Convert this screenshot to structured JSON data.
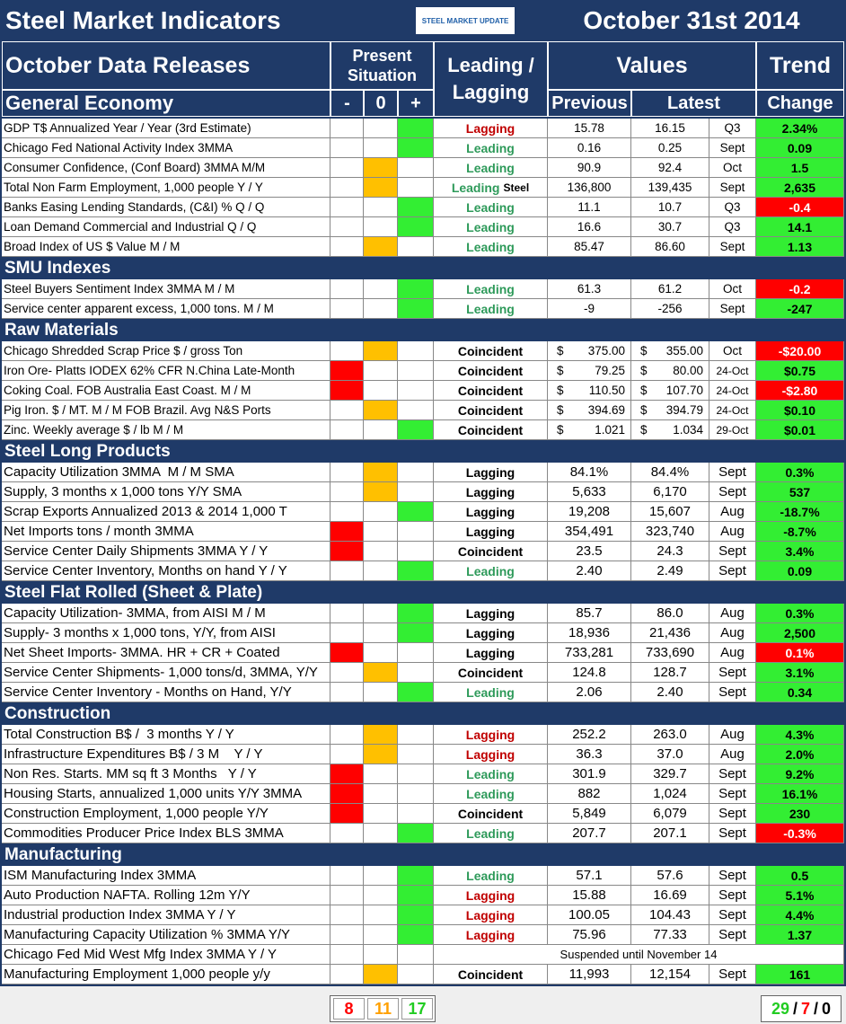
{
  "header": {
    "title": "Steel Market Indicators",
    "logo": "STEEL MARKET UPDATE",
    "date": "October 31st 2014"
  },
  "columns": {
    "releases": "October Data Releases",
    "situation": "Present Situation",
    "minus": "-",
    "zero": "0",
    "plus": "+",
    "lead": "Leading / Lagging",
    "values": "Values",
    "previous": "Previous",
    "latest": "Latest",
    "trend": "Trend",
    "change": "Change"
  },
  "sections": [
    {
      "title": "General Economy",
      "rows": [
        {
          "label": "GDP T$ Annualized Year / Year (3rd Estimate)",
          "sit": 1,
          "lead": "Lagging",
          "lead_color": "red",
          "prev": "15.78",
          "latest": "16.15",
          "period": "Q3",
          "change": "2.34%",
          "change_color": "green"
        },
        {
          "label": "Chicago Fed National Activity Index 3MMA",
          "sit": 1,
          "lead": "Leading",
          "lead_color": "green",
          "prev": "0.16",
          "latest": "0.25",
          "period": "Sept",
          "change": "0.09",
          "change_color": "green"
        },
        {
          "label": "Consumer Confidence, (Conf Board) 3MMA M/M",
          "sit": 0,
          "lead": "Leading",
          "lead_color": "green",
          "prev": "90.9",
          "latest": "92.4",
          "period": "Oct",
          "change": "1.5",
          "change_color": "green"
        },
        {
          "label": "Total Non Farm Employment, 1,000 people Y / Y",
          "sit": 0,
          "lead": "Leading",
          "lead_note": "Steel",
          "lead_color": "green",
          "prev": "136,800",
          "latest": "139,435",
          "period": "Sept",
          "change": "2,635",
          "change_color": "green"
        },
        {
          "label": "Banks Easing Lending Standards, (C&I) % Q / Q",
          "sit": 1,
          "lead": "Leading",
          "lead_color": "green",
          "prev": "11.1",
          "latest": "10.7",
          "period": "Q3",
          "change": "-0.4",
          "change_color": "red"
        },
        {
          "label": "Loan Demand Commercial and Industrial Q / Q",
          "sit": 1,
          "lead": "Leading",
          "lead_color": "green",
          "prev": "16.6",
          "latest": "30.7",
          "period": "Q3",
          "change": "14.1",
          "change_color": "green"
        },
        {
          "label": "Broad Index of US $ Value M / M",
          "sit": 0,
          "lead": "Leading",
          "lead_color": "green",
          "prev": "85.47",
          "latest": "86.60",
          "period": "Sept",
          "change": "1.13",
          "change_color": "green"
        }
      ]
    },
    {
      "title": "SMU Indexes",
      "rows": [
        {
          "label": "Steel Buyers Sentiment Index 3MMA M / M",
          "sit": 1,
          "lead": "Leading",
          "lead_color": "green",
          "prev": "61.3",
          "latest": "61.2",
          "period": "Oct",
          "change": "-0.2",
          "change_color": "red"
        },
        {
          "label": "Service center apparent excess, 1,000 tons. M / M",
          "sit": 1,
          "lead": "Leading",
          "lead_color": "green",
          "prev": "-9",
          "latest": "-256",
          "period": "Sept",
          "change": "-247",
          "change_color": "green"
        }
      ]
    },
    {
      "title": "Raw Materials",
      "rows": [
        {
          "label": "Chicago Shredded Scrap Price $ / gross Ton",
          "sit": 0,
          "lead": "Coincident",
          "lead_color": "black",
          "unit": "$",
          "prev": "375.00",
          "latest": "355.00",
          "period": "Oct",
          "change": "-$20.00",
          "change_color": "red"
        },
        {
          "label": "Iron Ore- Platts IODEX 62% CFR N.China Late-Month",
          "sit": -1,
          "lead": "Coincident",
          "lead_color": "black",
          "unit": "$",
          "prev": "79.25",
          "latest": "80.00",
          "period": "24-Oct",
          "change": "$0.75",
          "change_color": "green"
        },
        {
          "label": "Coking Coal. FOB Australia East Coast. M / M",
          "sit": -1,
          "lead": "Coincident",
          "lead_color": "black",
          "unit": "$",
          "prev": "110.50",
          "latest": "107.70",
          "period": "24-Oct",
          "change": "-$2.80",
          "change_color": "red"
        },
        {
          "label": "Pig Iron. $ / MT. M / M FOB Brazil. Avg N&S Ports",
          "sit": 0,
          "lead": "Coincident",
          "lead_color": "black",
          "unit": "$",
          "prev": "394.69",
          "latest": "394.79",
          "period": "24-Oct",
          "change": "$0.10",
          "change_color": "green"
        },
        {
          "label": "Zinc. Weekly average $ / lb M / M",
          "sit": 1,
          "lead": "Coincident",
          "lead_color": "black",
          "unit": "$",
          "prev": "1.021",
          "latest": "1.034",
          "period": "29-Oct",
          "change": "$0.01",
          "change_color": "green"
        }
      ]
    },
    {
      "title": "Steel Long Products",
      "rows": [
        {
          "label": "Capacity Utilization 3MMA  M / M SMA",
          "sit": 0,
          "lead": "Lagging",
          "lead_color": "black",
          "prev": "84.1%",
          "latest": "84.4%",
          "period": "Sept",
          "change": "0.3%",
          "change_color": "green"
        },
        {
          "label": "Supply, 3 months x 1,000 tons Y/Y SMA",
          "sit": 0,
          "lead": "Lagging",
          "lead_color": "black",
          "prev": "5,633",
          "latest": "6,170",
          "period": "Sept",
          "change": "537",
          "change_color": "green"
        },
        {
          "label": "Scrap Exports Annualized 2013 & 2014 1,000 T",
          "sit": 1,
          "lead": "Lagging",
          "lead_color": "black",
          "prev": "19,208",
          "latest": "15,607",
          "period": "Aug",
          "change": "-18.7%",
          "change_color": "green"
        },
        {
          "label": "Net Imports tons / month 3MMA",
          "sit": -1,
          "lead": "Lagging",
          "lead_color": "black",
          "prev": "354,491",
          "latest": "323,740",
          "period": "Aug",
          "change": "-8.7%",
          "change_color": "green"
        },
        {
          "label": "Service Center Daily Shipments 3MMA Y / Y",
          "sit": -1,
          "lead": "Coincident",
          "lead_color": "black",
          "prev": "23.5",
          "latest": "24.3",
          "period": "Sept",
          "change": "3.4%",
          "change_color": "green"
        },
        {
          "label": "Service Center Inventory, Months on hand Y / Y",
          "sit": 1,
          "lead": "Leading",
          "lead_color": "green",
          "prev": "2.40",
          "latest": "2.49",
          "period": "Sept",
          "change": "0.09",
          "change_color": "green"
        }
      ]
    },
    {
      "title": "Steel Flat Rolled (Sheet & Plate)",
      "rows": [
        {
          "label": "Capacity Utilization- 3MMA, from AISI M / M",
          "sit": 1,
          "lead": "Lagging",
          "lead_color": "black",
          "prev": "85.7",
          "latest": "86.0",
          "period": "Aug",
          "change": "0.3%",
          "change_color": "green"
        },
        {
          "label": "Supply- 3 months x 1,000 tons, Y/Y, from AISI",
          "sit": 1,
          "lead": "Lagging",
          "lead_color": "black",
          "prev": "18,936",
          "latest": "21,436",
          "period": "Aug",
          "change": "2,500",
          "change_color": "green"
        },
        {
          "label": "Net Sheet Imports- 3MMA. HR + CR + Coated",
          "sit": -1,
          "lead": "Lagging",
          "lead_color": "black",
          "prev": "733,281",
          "latest": "733,690",
          "period": "Aug",
          "change": "0.1%",
          "change_color": "red"
        },
        {
          "label": "Service Center Shipments- 1,000 tons/d, 3MMA, Y/Y",
          "sit": 0,
          "lead": "Coincident",
          "lead_color": "black",
          "prev": "124.8",
          "latest": "128.7",
          "period": "Sept",
          "change": "3.1%",
          "change_color": "green"
        },
        {
          "label": "Service Center Inventory - Months on Hand, Y/Y",
          "sit": 1,
          "lead": "Leading",
          "lead_color": "green",
          "prev": "2.06",
          "latest": "2.40",
          "period": "Sept",
          "change": "0.34",
          "change_color": "green"
        }
      ]
    },
    {
      "title": "Construction",
      "rows": [
        {
          "label": "Total Construction B$ /  3 months Y / Y",
          "sit": 0,
          "lead": "Lagging",
          "lead_color": "red",
          "prev": "252.2",
          "latest": "263.0",
          "period": "Aug",
          "change": "4.3%",
          "change_color": "green"
        },
        {
          "label": "Infrastructure Expenditures B$ / 3 M    Y / Y",
          "sit": 0,
          "lead": "Lagging",
          "lead_color": "red",
          "prev": "36.3",
          "latest": "37.0",
          "period": "Aug",
          "change": "2.0%",
          "change_color": "green"
        },
        {
          "label": "Non Res. Starts. MM sq ft 3 Months   Y / Y",
          "sit": -1,
          "lead": "Leading",
          "lead_color": "green",
          "prev": "301.9",
          "latest": "329.7",
          "period": "Sept",
          "change": "9.2%",
          "change_color": "green"
        },
        {
          "label": "Housing Starts, annualized 1,000 units Y/Y 3MMA",
          "sit": -1,
          "lead": "Leading",
          "lead_color": "green",
          "prev": "882",
          "latest": "1,024",
          "period": "Sept",
          "change": "16.1%",
          "change_color": "green"
        },
        {
          "label": "Construction Employment, 1,000 people Y/Y",
          "sit": -1,
          "lead": "Coincident",
          "lead_color": "black",
          "prev": "5,849",
          "latest": "6,079",
          "period": "Sept",
          "change": "230",
          "change_color": "green"
        },
        {
          "label": "Commodities Producer Price Index BLS 3MMA",
          "sit": 1,
          "lead": "Leading",
          "lead_color": "green",
          "prev": "207.7",
          "latest": "207.1",
          "period": "Sept",
          "change": "-0.3%",
          "change_color": "red"
        }
      ]
    },
    {
      "title": "Manufacturing",
      "rows": [
        {
          "label": "ISM Manufacturing Index 3MMA",
          "sit": 1,
          "lead": "Leading",
          "lead_color": "green",
          "prev": "57.1",
          "latest": "57.6",
          "period": "Sept",
          "change": "0.5",
          "change_color": "green"
        },
        {
          "label": "Auto Production NAFTA. Rolling 12m Y/Y",
          "sit": 1,
          "lead": "Lagging",
          "lead_color": "red",
          "prev": "15.88",
          "latest": "16.69",
          "period": "Sept",
          "change": "5.1%",
          "change_color": "green"
        },
        {
          "label": "Industrial production Index 3MMA Y / Y",
          "sit": 1,
          "lead": "Lagging",
          "lead_color": "red",
          "prev": "100.05",
          "latest": "104.43",
          "period": "Sept",
          "change": "4.4%",
          "change_color": "green"
        },
        {
          "label": "Manufacturing Capacity Utilization % 3MMA Y/Y",
          "sit": 1,
          "lead": "Lagging",
          "lead_color": "red",
          "prev": "75.96",
          "latest": "77.33",
          "period": "Sept",
          "change": "1.37",
          "change_color": "green"
        },
        {
          "label": "Chicago Fed Mid West Mfg Index 3MMA Y / Y",
          "sit": null,
          "note": "Suspended until November 14"
        },
        {
          "label": "Manufacturing Employment 1,000 people y/y",
          "sit": 0,
          "lead": "Coincident",
          "lead_color": "black",
          "prev": "11,993",
          "latest": "12,154",
          "period": "Sept",
          "change": "161",
          "change_color": "green"
        }
      ]
    }
  ],
  "footer": {
    "negative": "8",
    "neutral": "11",
    "positive": "17",
    "trend_up": "29",
    "separator": "/",
    "trend_down": "7",
    "trend_flat": "0"
  }
}
